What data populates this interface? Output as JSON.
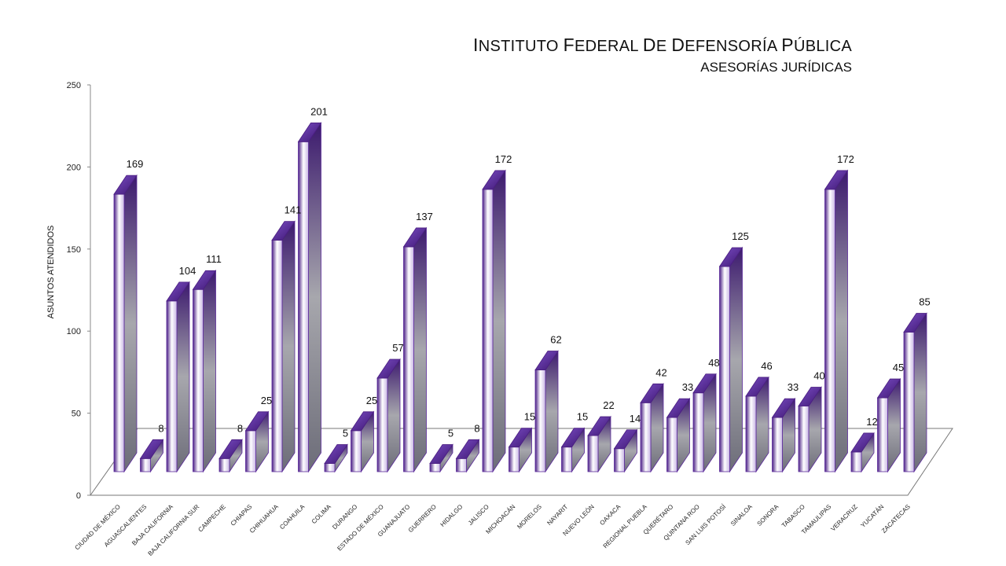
{
  "chart_data": {
    "type": "bar",
    "title": "Instituto Federal de Defensoría Pública",
    "subtitle": "Asesorías Jurídicas",
    "ylabel": "ASUNTOS ATENDIDOS",
    "xlabel": "",
    "ylim": [
      0,
      250
    ],
    "yticks": [
      0,
      50,
      100,
      150,
      200,
      250
    ],
    "grid": false,
    "style": "3d-column",
    "colors": {
      "dark": "#4b1f86",
      "light": "#ffffff",
      "side": "#3c1a6e",
      "top": "#6a3cb0"
    },
    "categories": [
      "CIUDAD DE MÉXICO",
      "AGUASCALIENTES",
      "BAJA CALIFORNIA",
      "BAJA CALIFORNIA SUR",
      "CAMPECHE",
      "CHIAPAS",
      "CHIHUAHUA",
      "COAHUILA",
      "COLIMA",
      "DURANGO",
      "ESTADO DE MÉXICO",
      "GUANAJUATO",
      "GUERRERO",
      "HIDALGO",
      "JALISCO",
      "MICHOACÁN",
      "MORELOS",
      "NAYARIT",
      "NUEVO LEÓN",
      "OAXACA",
      "REGIONAL PUEBLA",
      "QUERÉTARO",
      "QUINTANA ROO",
      "SAN LUIS POTOSÍ",
      "SINALOA",
      "SONORA",
      "TABASCO",
      "TAMAULIPAS",
      "VERACRUZ",
      "YUCATÁN",
      "ZACATECAS"
    ],
    "values": [
      169,
      8,
      104,
      111,
      8,
      25,
      141,
      201,
      5,
      25,
      57,
      137,
      5,
      8,
      172,
      15,
      62,
      15,
      22,
      14,
      42,
      33,
      48,
      125,
      46,
      33,
      40,
      172,
      12,
      45,
      85
    ]
  }
}
